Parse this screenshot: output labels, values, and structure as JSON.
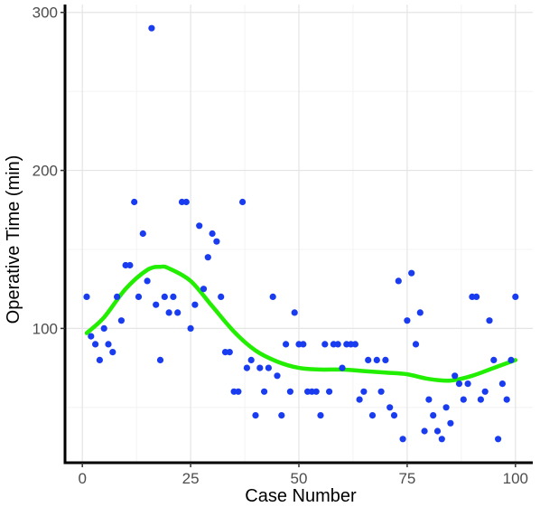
{
  "chart_data": {
    "type": "scatter",
    "xlabel": "Case Number",
    "ylabel": "Operative Time (min)",
    "xlim": [
      -4,
      104
    ],
    "ylim": [
      15,
      305
    ],
    "xticks": [
      0,
      25,
      50,
      75,
      100
    ],
    "yticks": [
      100,
      200,
      300
    ],
    "grid": true,
    "colors": {
      "points": "#1a3cf0",
      "trend": "#22ee00"
    },
    "points": [
      [
        1,
        120
      ],
      [
        2,
        95
      ],
      [
        3,
        90
      ],
      [
        4,
        80
      ],
      [
        5,
        100
      ],
      [
        6,
        90
      ],
      [
        7,
        85
      ],
      [
        8,
        120
      ],
      [
        9,
        105
      ],
      [
        10,
        140
      ],
      [
        11,
        140
      ],
      [
        12,
        180
      ],
      [
        13,
        120
      ],
      [
        14,
        160
      ],
      [
        15,
        130
      ],
      [
        16,
        290
      ],
      [
        17,
        115
      ],
      [
        18,
        80
      ],
      [
        19,
        120
      ],
      [
        20,
        110
      ],
      [
        21,
        120
      ],
      [
        22,
        110
      ],
      [
        23,
        180
      ],
      [
        24,
        180
      ],
      [
        25,
        100
      ],
      [
        26,
        115
      ],
      [
        27,
        165
      ],
      [
        28,
        125
      ],
      [
        29,
        145
      ],
      [
        30,
        160
      ],
      [
        31,
        155
      ],
      [
        32,
        120
      ],
      [
        33,
        85
      ],
      [
        34,
        85
      ],
      [
        35,
        60
      ],
      [
        36,
        60
      ],
      [
        37,
        180
      ],
      [
        38,
        75
      ],
      [
        39,
        80
      ],
      [
        40,
        45
      ],
      [
        41,
        75
      ],
      [
        42,
        60
      ],
      [
        43,
        75
      ],
      [
        44,
        120
      ],
      [
        45,
        70
      ],
      [
        46,
        45
      ],
      [
        47,
        90
      ],
      [
        48,
        60
      ],
      [
        49,
        110
      ],
      [
        50,
        90
      ],
      [
        51,
        90
      ],
      [
        52,
        60
      ],
      [
        53,
        60
      ],
      [
        54,
        60
      ],
      [
        55,
        45
      ],
      [
        56,
        90
      ],
      [
        57,
        60
      ],
      [
        58,
        90
      ],
      [
        59,
        90
      ],
      [
        60,
        75
      ],
      [
        61,
        90
      ],
      [
        62,
        90
      ],
      [
        63,
        90
      ],
      [
        64,
        55
      ],
      [
        65,
        60
      ],
      [
        66,
        80
      ],
      [
        67,
        45
      ],
      [
        68,
        80
      ],
      [
        69,
        60
      ],
      [
        70,
        80
      ],
      [
        71,
        50
      ],
      [
        72,
        45
      ],
      [
        73,
        130
      ],
      [
        74,
        30
      ],
      [
        75,
        105
      ],
      [
        76,
        135
      ],
      [
        77,
        90
      ],
      [
        78,
        110
      ],
      [
        79,
        35
      ],
      [
        80,
        55
      ],
      [
        81,
        45
      ],
      [
        82,
        35
      ],
      [
        83,
        30
      ],
      [
        84,
        50
      ],
      [
        85,
        40
      ],
      [
        86,
        70
      ],
      [
        87,
        65
      ],
      [
        88,
        55
      ],
      [
        89,
        65
      ],
      [
        90,
        120
      ],
      [
        91,
        120
      ],
      [
        92,
        55
      ],
      [
        93,
        60
      ],
      [
        94,
        105
      ],
      [
        95,
        80
      ],
      [
        96,
        30
      ],
      [
        97,
        65
      ],
      [
        98,
        55
      ],
      [
        99,
        80
      ],
      [
        100,
        120
      ]
    ],
    "trend": {
      "x": [
        1,
        5,
        10,
        15,
        18,
        20,
        25,
        30,
        35,
        40,
        45,
        50,
        55,
        60,
        65,
        70,
        75,
        80,
        85,
        90,
        95,
        100
      ],
      "y": [
        97,
        107,
        125,
        137,
        139,
        138,
        130,
        114,
        98,
        86,
        79,
        75,
        74,
        74,
        73,
        72,
        71,
        68,
        67,
        70,
        75,
        80
      ]
    }
  }
}
